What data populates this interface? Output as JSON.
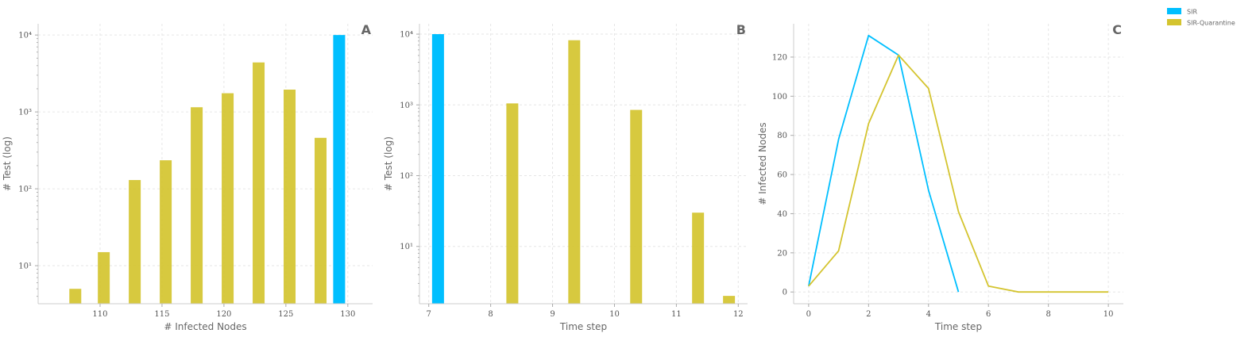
{
  "colors": {
    "sir": "#00bfff",
    "sir_quarantine": "#d4c42f"
  },
  "legend": {
    "placement": "top-right",
    "items": [
      {
        "label": "SIR",
        "color": "#00bfff"
      },
      {
        "label": "SIR-Quarantine",
        "color": "#d4c42f"
      }
    ]
  },
  "chart_data": [
    {
      "panel": "A",
      "type": "bar",
      "xlabel": "# Infected Nodes",
      "ylabel": "# Test (log)",
      "y_scale": "log",
      "xlim": [
        105,
        132
      ],
      "ylim": [
        3.2,
        14000
      ],
      "x_ticks": [
        110,
        115,
        120,
        125,
        130
      ],
      "grid": true,
      "bars": [
        {
          "x": 108,
          "value": 5,
          "series": "SIR-Quarantine"
        },
        {
          "x": 110.3,
          "value": 15,
          "series": "SIR-Quarantine"
        },
        {
          "x": 112.8,
          "value": 130,
          "series": "SIR-Quarantine"
        },
        {
          "x": 115.3,
          "value": 235,
          "series": "SIR-Quarantine"
        },
        {
          "x": 117.8,
          "value": 1150,
          "series": "SIR-Quarantine"
        },
        {
          "x": 120.3,
          "value": 1750,
          "series": "SIR-Quarantine"
        },
        {
          "x": 122.8,
          "value": 4400,
          "series": "SIR-Quarantine"
        },
        {
          "x": 125.3,
          "value": 1950,
          "series": "SIR-Quarantine"
        },
        {
          "x": 127.8,
          "value": 460,
          "series": "SIR-Quarantine"
        },
        {
          "x": 129.3,
          "value": 10000,
          "series": "SIR"
        }
      ]
    },
    {
      "panel": "B",
      "type": "bar",
      "xlabel": "Time step",
      "ylabel": "# Test (log)",
      "y_scale": "log",
      "xlim": [
        6.85,
        12.15
      ],
      "ylim": [
        1.55,
        14000
      ],
      "x_ticks": [
        7,
        8,
        9,
        10,
        11,
        12
      ],
      "grid": true,
      "bars": [
        {
          "x": 7.15,
          "value": 10000,
          "series": "SIR"
        },
        {
          "x": 8.35,
          "value": 1050,
          "series": "SIR-Quarantine"
        },
        {
          "x": 9.35,
          "value": 8200,
          "series": "SIR-Quarantine"
        },
        {
          "x": 10.35,
          "value": 850,
          "series": "SIR-Quarantine"
        },
        {
          "x": 11.35,
          "value": 30,
          "series": "SIR-Quarantine"
        },
        {
          "x": 11.85,
          "value": 2,
          "series": "SIR-Quarantine"
        }
      ]
    },
    {
      "panel": "C",
      "type": "line",
      "xlabel": "Time step",
      "ylabel": "# Infected Nodes",
      "xlim": [
        -0.5,
        10.5
      ],
      "ylim": [
        -6,
        137
      ],
      "x_ticks": [
        0,
        2,
        4,
        6,
        8,
        10
      ],
      "y_ticks": [
        0,
        20,
        40,
        60,
        80,
        100,
        120
      ],
      "grid": true,
      "series": [
        {
          "name": "SIR",
          "x": [
            0,
            1,
            2,
            3,
            4,
            5
          ],
          "y": [
            3,
            78,
            131,
            121,
            52,
            0
          ]
        },
        {
          "name": "SIR-Quarantine",
          "x": [
            0,
            1,
            2,
            3,
            4,
            5,
            6,
            7,
            8,
            9,
            10
          ],
          "y": [
            3,
            21,
            86,
            121,
            104,
            41,
            3,
            0,
            0,
            0,
            0
          ]
        }
      ]
    }
  ]
}
